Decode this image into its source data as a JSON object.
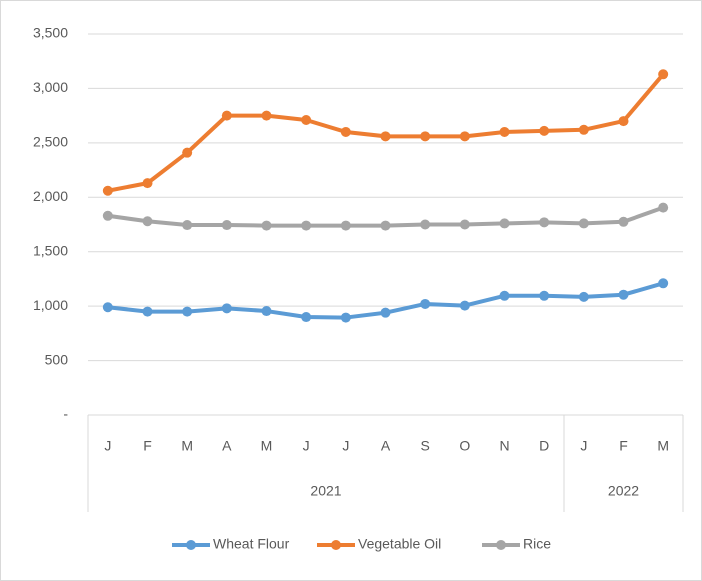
{
  "chart_data": {
    "type": "line",
    "categories": [
      "J",
      "F",
      "M",
      "A",
      "M",
      "J",
      "J",
      "A",
      "S",
      "O",
      "N",
      "D",
      "J",
      "F",
      "M"
    ],
    "x_groups": [
      {
        "label": "2021",
        "start": 0,
        "end": 11
      },
      {
        "label": "2022",
        "start": 12,
        "end": 14
      }
    ],
    "series": [
      {
        "name": "Wheat Flour",
        "color": "#5b9bd5",
        "values": [
          990,
          950,
          950,
          980,
          955,
          900,
          895,
          940,
          1020,
          1005,
          1095,
          1095,
          1085,
          1105,
          1210
        ]
      },
      {
        "name": "Vegetable Oil",
        "color": "#ed7d31",
        "values": [
          2060,
          2130,
          2410,
          2750,
          2750,
          2710,
          2600,
          2560,
          2560,
          2560,
          2600,
          2610,
          2620,
          2700,
          3130
        ]
      },
      {
        "name": "Rice",
        "color": "#a5a5a5",
        "values": [
          1830,
          1780,
          1745,
          1745,
          1740,
          1740,
          1740,
          1740,
          1750,
          1750,
          1760,
          1770,
          1760,
          1775,
          1905
        ]
      }
    ],
    "ylim": [
      0,
      3500
    ],
    "yticks": [
      {
        "value": 0,
        "label": "-"
      },
      500,
      {
        "value": 1000,
        "label": "1,000"
      },
      {
        "value": 1500,
        "label": "1,500"
      },
      {
        "value": 2000,
        "label": "2,000"
      },
      {
        "value": 2500,
        "label": "2,500"
      },
      {
        "value": 3000,
        "label": "3,000"
      },
      {
        "value": 3500,
        "label": "3,500"
      }
    ],
    "grid": true,
    "legend": "bottom"
  }
}
